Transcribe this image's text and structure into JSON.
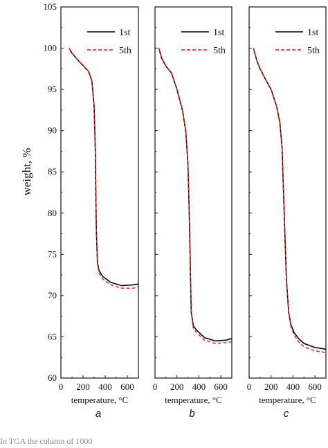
{
  "figure": {
    "ylabel": "weight, %",
    "caption": "In TGA the column of 1000"
  },
  "chart_data": [
    {
      "type": "line",
      "panel_label": "a",
      "xlabel": "temperature, °C",
      "ylabel": "weight, %",
      "xlim": [
        0,
        700
      ],
      "ylim": [
        60,
        105
      ],
      "xticks": [
        "0",
        "200",
        "400",
        "600"
      ],
      "yticks": [
        "60",
        "65",
        "70",
        "75",
        "80",
        "85",
        "90",
        "95",
        "100",
        "105"
      ],
      "legend": "top-right",
      "series": [
        {
          "name": "1st",
          "color": "#000000",
          "style": "solid",
          "x": [
            75,
            100,
            150,
            200,
            250,
            280,
            300,
            310,
            320,
            330,
            345,
            380,
            450,
            550,
            650,
            700
          ],
          "y": [
            100.0,
            99.4,
            98.6,
            97.9,
            97.2,
            96.0,
            93.0,
            88.0,
            78.0,
            74.0,
            73.0,
            72.3,
            71.6,
            71.2,
            71.3,
            71.4
          ]
        },
        {
          "name": "5th",
          "color": "#e41a1c",
          "style": "dashed",
          "x": [
            75,
            100,
            150,
            200,
            250,
            280,
            300,
            310,
            320,
            330,
            345,
            380,
            450,
            550,
            650,
            700
          ],
          "y": [
            100.0,
            99.4,
            98.6,
            97.9,
            97.2,
            96.0,
            93.0,
            88.0,
            78.0,
            73.8,
            72.7,
            72.0,
            71.3,
            70.9,
            70.9,
            71.0
          ]
        }
      ]
    },
    {
      "type": "line",
      "panel_label": "b",
      "xlabel": "temperature, °C",
      "ylabel": "weight, %",
      "xlim": [
        0,
        700
      ],
      "ylim": [
        60,
        105
      ],
      "xticks": [
        "0",
        "200",
        "400",
        "600"
      ],
      "yticks": [
        "60",
        "65",
        "70",
        "75",
        "80",
        "85",
        "90",
        "95",
        "100",
        "105"
      ],
      "legend": "top-right",
      "series": [
        {
          "name": "1st",
          "color": "#000000",
          "style": "solid",
          "x": [
            35,
            60,
            100,
            150,
            200,
            250,
            280,
            300,
            310,
            320,
            330,
            350,
            380,
            450,
            550,
            650,
            700
          ],
          "y": [
            100.0,
            98.8,
            97.8,
            97.0,
            95.0,
            92.5,
            90.0,
            86.0,
            81.0,
            75.0,
            68.0,
            66.3,
            65.8,
            64.9,
            64.5,
            64.6,
            64.8
          ]
        },
        {
          "name": "5th",
          "color": "#e41a1c",
          "style": "dashed",
          "x": [
            35,
            60,
            100,
            150,
            200,
            250,
            280,
            300,
            310,
            320,
            330,
            350,
            380,
            450,
            550,
            650,
            700
          ],
          "y": [
            100.0,
            98.8,
            97.8,
            97.0,
            95.0,
            92.5,
            90.0,
            86.0,
            81.0,
            75.0,
            68.0,
            66.0,
            65.5,
            64.6,
            64.2,
            64.3,
            64.4
          ]
        }
      ]
    },
    {
      "type": "line",
      "panel_label": "c",
      "xlabel": "temperature, °C",
      "ylabel": "weight, %",
      "xlim": [
        0,
        700
      ],
      "ylim": [
        60,
        105
      ],
      "xticks": [
        "0",
        "200",
        "400",
        "600"
      ],
      "yticks": [
        "60",
        "65",
        "70",
        "75",
        "80",
        "85",
        "90",
        "95",
        "100",
        "105"
      ],
      "legend": "top-right",
      "series": [
        {
          "name": "1st",
          "color": "#000000",
          "style": "solid",
          "x": [
            40,
            70,
            100,
            150,
            200,
            250,
            280,
            300,
            320,
            340,
            360,
            380,
            410,
            450,
            500,
            600,
            700
          ],
          "y": [
            100.0,
            98.5,
            97.5,
            96.2,
            95.0,
            93.0,
            91.0,
            88.0,
            80.0,
            72.0,
            68.0,
            66.5,
            65.5,
            64.8,
            64.2,
            63.7,
            63.5
          ]
        },
        {
          "name": "5th",
          "color": "#e41a1c",
          "style": "dashed",
          "x": [
            40,
            70,
            100,
            150,
            200,
            250,
            280,
            300,
            320,
            340,
            360,
            380,
            410,
            450,
            500,
            600,
            700
          ],
          "y": [
            100.0,
            98.5,
            97.5,
            96.2,
            95.0,
            93.0,
            91.0,
            88.0,
            80.0,
            72.0,
            68.0,
            66.3,
            65.2,
            64.4,
            63.8,
            63.3,
            63.1
          ]
        }
      ]
    }
  ]
}
